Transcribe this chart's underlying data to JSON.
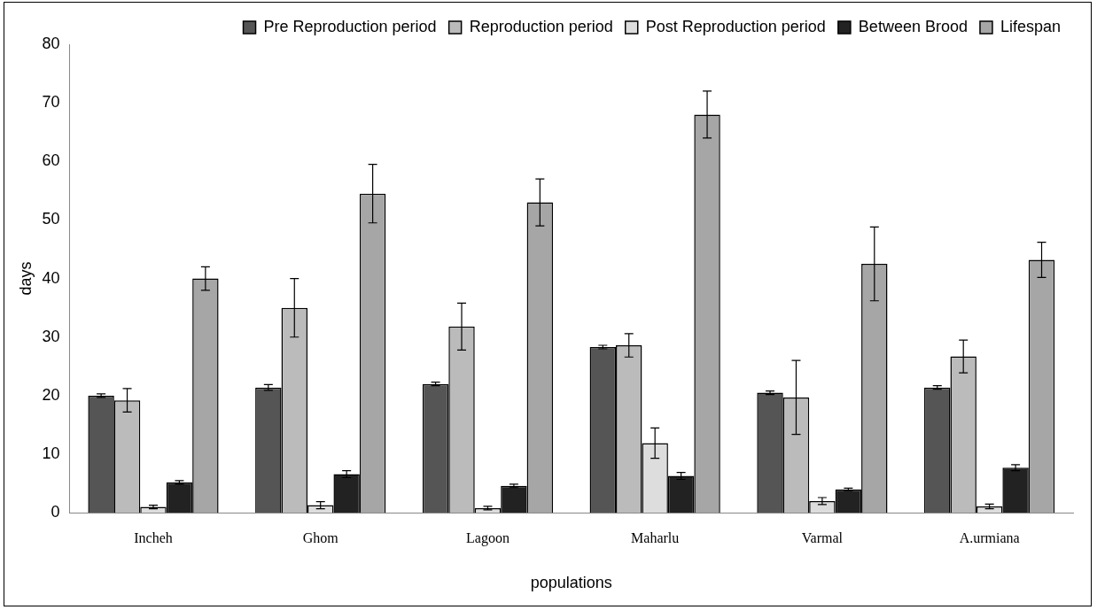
{
  "chart_data": {
    "type": "bar",
    "xlabel": "populations",
    "ylabel": "days",
    "categories": [
      "Incheh",
      "Ghom",
      "Lagoon",
      "Maharlu",
      "Varmal",
      "A.urmiana"
    ],
    "series": [
      {
        "name": "Pre Reproduction period",
        "color": "#555555",
        "values": [
          20,
          21.4,
          22,
          28.3,
          20.5,
          21.4
        ],
        "errors": [
          0.3,
          0.5,
          0.3,
          0.3,
          0.3,
          0.3
        ]
      },
      {
        "name": "Reproduction period",
        "color": "#bbbbbb",
        "values": [
          19.2,
          35,
          31.8,
          28.6,
          19.7,
          26.7
        ],
        "errors": [
          2,
          5,
          4,
          2,
          6.3,
          2.8
        ]
      },
      {
        "name": "Post Reproduction period",
        "color": "#dddddd",
        "values": [
          1,
          1.3,
          0.8,
          11.9,
          2,
          1.1
        ],
        "errors": [
          0.3,
          0.6,
          0.3,
          2.6,
          0.6,
          0.4
        ]
      },
      {
        "name": "Between Brood",
        "color": "#222222",
        "values": [
          5.2,
          6.6,
          4.6,
          6.3,
          4,
          7.7
        ],
        "errors": [
          0.3,
          0.6,
          0.3,
          0.6,
          0.2,
          0.5
        ]
      },
      {
        "name": "Lifespan",
        "color": "#a6a6a6",
        "values": [
          40,
          54.5,
          53,
          68,
          42.5,
          43.2
        ],
        "errors": [
          2,
          5,
          4,
          4,
          6.3,
          3
        ]
      }
    ],
    "ylim": [
      0,
      80
    ],
    "yticks": [
      0,
      10,
      20,
      30,
      40,
      50,
      60,
      70,
      80
    ],
    "grid": false,
    "legend": "top right"
  }
}
